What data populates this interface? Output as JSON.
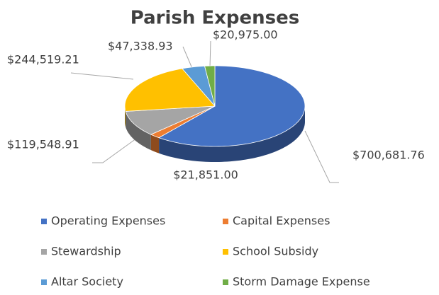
{
  "chart_data": {
    "type": "pie",
    "title": "Parish Expenses",
    "categories": [
      "Operating Expenses",
      "Capital Expenses",
      "Stewardship",
      "School Subsidy",
      "Altar Society",
      "Storm Damage Expense"
    ],
    "values": [
      700681.76,
      21851.0,
      119548.91,
      244519.21,
      47338.93,
      20975.0
    ],
    "value_labels": [
      "$700,681.76",
      "$21,851.00",
      "$119,548.91",
      "$244,519.21",
      "$47,338.93",
      "$20,975.00"
    ],
    "colors": [
      "#4472c4",
      "#ed7d31",
      "#a5a5a5",
      "#ffc000",
      "#5b9bd5",
      "#70ad47"
    ],
    "legend": "bottom"
  }
}
